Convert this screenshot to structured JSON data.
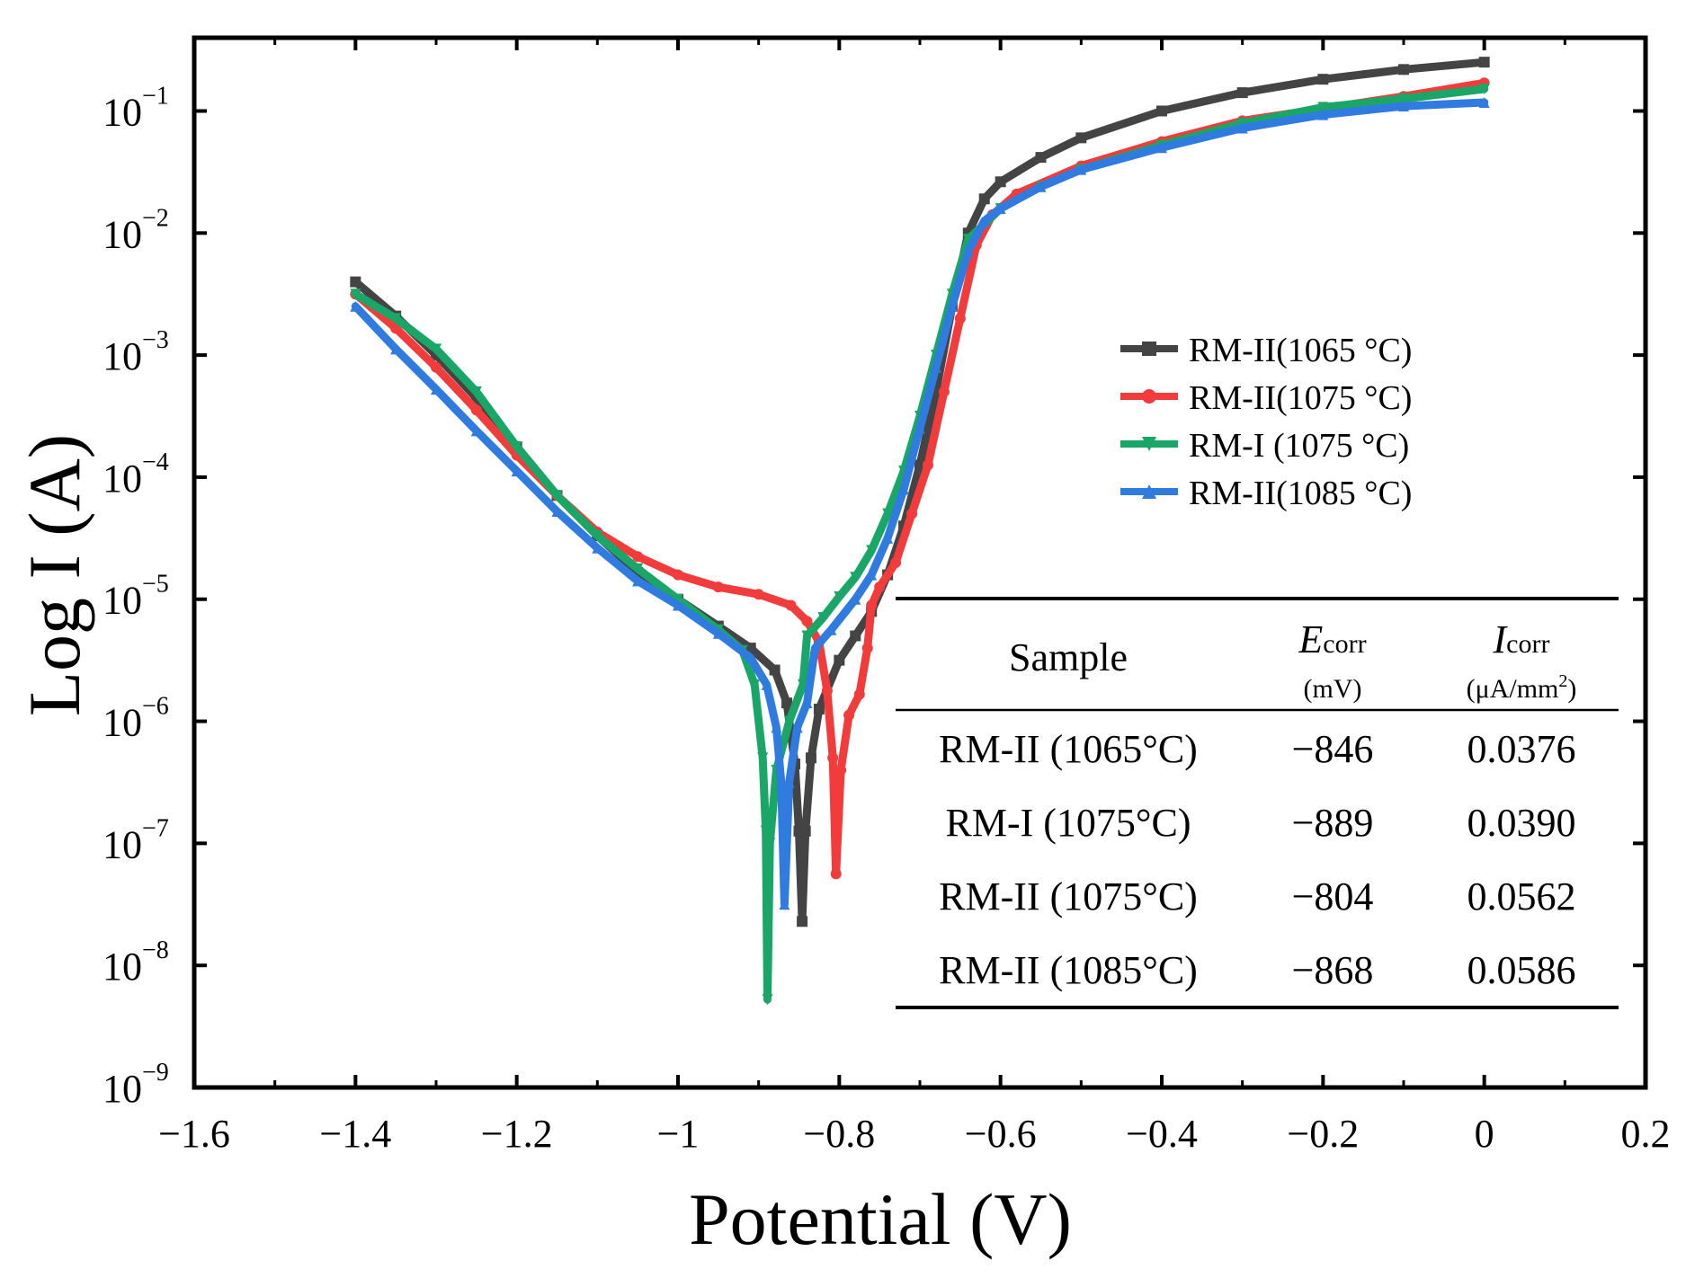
{
  "chart_data": {
    "type": "line",
    "xlabel": "Potential (V)",
    "ylabel": "Log I (A)",
    "xlim": [
      -1.6,
      0.2
    ],
    "ylim_log10": [
      -9,
      -0.4
    ],
    "yscale": "log",
    "x_ticks": [
      -1.6,
      -1.4,
      -1.2,
      -1.0,
      -0.8,
      -0.6,
      -0.4,
      -0.2,
      0.0,
      0.2
    ],
    "x_tick_labels": [
      "−1.6",
      "−1.4",
      "−1.2",
      "−1",
      "−0.8",
      "−0.6",
      "−0.4",
      "−0.2",
      "0",
      "0.2"
    ],
    "y_ticks": [
      {
        "base": "10",
        "exp": "−9",
        "value": -9
      },
      {
        "base": "10",
        "exp": "−8",
        "value": -8
      },
      {
        "base": "10",
        "exp": "−7",
        "value": -7
      },
      {
        "base": "10",
        "exp": "−6",
        "value": -6
      },
      {
        "base": "10",
        "exp": "−5",
        "value": -5
      },
      {
        "base": "10",
        "exp": "−4",
        "value": -4
      },
      {
        "base": "10",
        "exp": "−3",
        "value": -3
      },
      {
        "base": "10",
        "exp": "−2",
        "value": -2
      },
      {
        "base": "10",
        "exp": "−1",
        "value": -1
      }
    ],
    "legend_position": "upper-right",
    "series": [
      {
        "name": "RM-II(1065 °C)",
        "color": "#444444",
        "marker": "square",
        "points": [
          [
            -1.4,
            -2.4
          ],
          [
            -1.35,
            -2.68
          ],
          [
            -1.3,
            -3.0
          ],
          [
            -1.25,
            -3.35
          ],
          [
            -1.2,
            -3.75
          ],
          [
            -1.15,
            -4.15
          ],
          [
            -1.1,
            -4.48
          ],
          [
            -1.05,
            -4.78
          ],
          [
            -1.0,
            -5.0
          ],
          [
            -0.95,
            -5.22
          ],
          [
            -0.91,
            -5.4
          ],
          [
            -0.88,
            -5.58
          ],
          [
            -0.865,
            -5.85
          ],
          [
            -0.855,
            -6.35
          ],
          [
            -0.85,
            -6.9
          ],
          [
            -0.846,
            -7.64
          ],
          [
            -0.842,
            -6.9
          ],
          [
            -0.835,
            -6.3
          ],
          [
            -0.825,
            -5.9
          ],
          [
            -0.8,
            -5.5
          ],
          [
            -0.78,
            -5.3
          ],
          [
            -0.76,
            -5.1
          ],
          [
            -0.74,
            -4.8
          ],
          [
            -0.72,
            -4.4
          ],
          [
            -0.7,
            -3.9
          ],
          [
            -0.68,
            -3.3
          ],
          [
            -0.66,
            -2.6
          ],
          [
            -0.64,
            -2.0
          ],
          [
            -0.62,
            -1.72
          ],
          [
            -0.6,
            -1.58
          ],
          [
            -0.55,
            -1.38
          ],
          [
            -0.5,
            -1.22
          ],
          [
            -0.4,
            -1.0
          ],
          [
            -0.3,
            -0.85
          ],
          [
            -0.2,
            -0.74
          ],
          [
            -0.1,
            -0.66
          ],
          [
            0.0,
            -0.6
          ]
        ]
      },
      {
        "name": "RM-II(1075 °C)",
        "color": "#f23b3b",
        "marker": "circle",
        "points": [
          [
            -1.4,
            -2.5
          ],
          [
            -1.35,
            -2.78
          ],
          [
            -1.3,
            -3.1
          ],
          [
            -1.25,
            -3.45
          ],
          [
            -1.2,
            -3.82
          ],
          [
            -1.15,
            -4.15
          ],
          [
            -1.1,
            -4.45
          ],
          [
            -1.05,
            -4.65
          ],
          [
            -1.0,
            -4.8
          ],
          [
            -0.95,
            -4.9
          ],
          [
            -0.9,
            -4.96
          ],
          [
            -0.86,
            -5.05
          ],
          [
            -0.84,
            -5.18
          ],
          [
            -0.825,
            -5.35
          ],
          [
            -0.815,
            -5.75
          ],
          [
            -0.808,
            -6.3
          ],
          [
            -0.804,
            -7.25
          ],
          [
            -0.798,
            -6.4
          ],
          [
            -0.788,
            -5.95
          ],
          [
            -0.775,
            -5.78
          ],
          [
            -0.765,
            -5.4
          ],
          [
            -0.76,
            -5.05
          ],
          [
            -0.75,
            -4.9
          ],
          [
            -0.73,
            -4.7
          ],
          [
            -0.71,
            -4.3
          ],
          [
            -0.69,
            -3.9
          ],
          [
            -0.67,
            -3.3
          ],
          [
            -0.65,
            -2.7
          ],
          [
            -0.63,
            -2.1
          ],
          [
            -0.61,
            -1.85
          ],
          [
            -0.58,
            -1.68
          ],
          [
            -0.5,
            -1.45
          ],
          [
            -0.4,
            -1.25
          ],
          [
            -0.3,
            -1.08
          ],
          [
            -0.2,
            -0.98
          ],
          [
            -0.1,
            -0.88
          ],
          [
            0.0,
            -0.77
          ]
        ]
      },
      {
        "name": "RM-I (1075 °C)",
        "color": "#1aa667",
        "marker": "triangle-down",
        "points": [
          [
            -1.4,
            -2.5
          ],
          [
            -1.35,
            -2.7
          ],
          [
            -1.3,
            -2.95
          ],
          [
            -1.25,
            -3.3
          ],
          [
            -1.2,
            -3.75
          ],
          [
            -1.15,
            -4.15
          ],
          [
            -1.1,
            -4.48
          ],
          [
            -1.05,
            -4.75
          ],
          [
            -1.0,
            -5.0
          ],
          [
            -0.95,
            -5.25
          ],
          [
            -0.92,
            -5.42
          ],
          [
            -0.905,
            -5.7
          ],
          [
            -0.895,
            -6.3
          ],
          [
            -0.891,
            -6.9
          ],
          [
            -0.889,
            -8.28
          ],
          [
            -0.886,
            -7.0
          ],
          [
            -0.878,
            -6.4
          ],
          [
            -0.862,
            -6.0
          ],
          [
            -0.845,
            -5.7
          ],
          [
            -0.84,
            -5.3
          ],
          [
            -0.82,
            -5.15
          ],
          [
            -0.8,
            -4.98
          ],
          [
            -0.78,
            -4.82
          ],
          [
            -0.76,
            -4.6
          ],
          [
            -0.74,
            -4.3
          ],
          [
            -0.72,
            -3.95
          ],
          [
            -0.7,
            -3.5
          ],
          [
            -0.68,
            -3.0
          ],
          [
            -0.66,
            -2.5
          ],
          [
            -0.64,
            -2.05
          ],
          [
            -0.6,
            -1.8
          ],
          [
            -0.55,
            -1.62
          ],
          [
            -0.5,
            -1.48
          ],
          [
            -0.4,
            -1.28
          ],
          [
            -0.3,
            -1.1
          ],
          [
            -0.2,
            -0.97
          ],
          [
            -0.1,
            -0.9
          ],
          [
            0.0,
            -0.82
          ]
        ]
      },
      {
        "name": "RM-II(1085 °C)",
        "color": "#2f7be0",
        "marker": "triangle-up",
        "points": [
          [
            -1.4,
            -2.6
          ],
          [
            -1.35,
            -2.95
          ],
          [
            -1.3,
            -3.28
          ],
          [
            -1.25,
            -3.62
          ],
          [
            -1.2,
            -3.95
          ],
          [
            -1.15,
            -4.28
          ],
          [
            -1.1,
            -4.58
          ],
          [
            -1.05,
            -4.85
          ],
          [
            -1.0,
            -5.05
          ],
          [
            -0.95,
            -5.28
          ],
          [
            -0.91,
            -5.48
          ],
          [
            -0.89,
            -5.7
          ],
          [
            -0.878,
            -6.05
          ],
          [
            -0.872,
            -6.5
          ],
          [
            -0.868,
            -7.5
          ],
          [
            -0.862,
            -6.5
          ],
          [
            -0.852,
            -6.05
          ],
          [
            -0.84,
            -5.85
          ],
          [
            -0.83,
            -5.4
          ],
          [
            -0.81,
            -5.25
          ],
          [
            -0.78,
            -5.0
          ],
          [
            -0.76,
            -4.8
          ],
          [
            -0.74,
            -4.5
          ],
          [
            -0.72,
            -4.1
          ],
          [
            -0.7,
            -3.6
          ],
          [
            -0.68,
            -3.1
          ],
          [
            -0.66,
            -2.6
          ],
          [
            -0.64,
            -2.15
          ],
          [
            -0.62,
            -1.9
          ],
          [
            -0.6,
            -1.8
          ],
          [
            -0.55,
            -1.62
          ],
          [
            -0.5,
            -1.48
          ],
          [
            -0.4,
            -1.3
          ],
          [
            -0.3,
            -1.14
          ],
          [
            -0.2,
            -1.03
          ],
          [
            -0.1,
            -0.96
          ],
          [
            0.0,
            -0.93
          ]
        ]
      }
    ],
    "table": {
      "headers": {
        "sample": "Sample",
        "ecorr_symbol": "E",
        "ecorr_sub": "corr",
        "ecorr_unit": "(mV)",
        "icorr_symbol": "I",
        "icorr_sub": "corr",
        "icorr_unit": "(μA/mm",
        "icorr_unit_sup": "2",
        "icorr_unit_close": ")"
      },
      "rows": [
        {
          "sample": "RM-II (1065°C)",
          "ecorr": "−846",
          "icorr": "0.0376"
        },
        {
          "sample": "RM-I (1075°C)",
          "ecorr": "−889",
          "icorr": "0.0390"
        },
        {
          "sample": "RM-II (1075°C)",
          "ecorr": "−804",
          "icorr": "0.0562"
        },
        {
          "sample": "RM-II (1085°C)",
          "ecorr": "−868",
          "icorr": "0.0586"
        }
      ]
    }
  }
}
